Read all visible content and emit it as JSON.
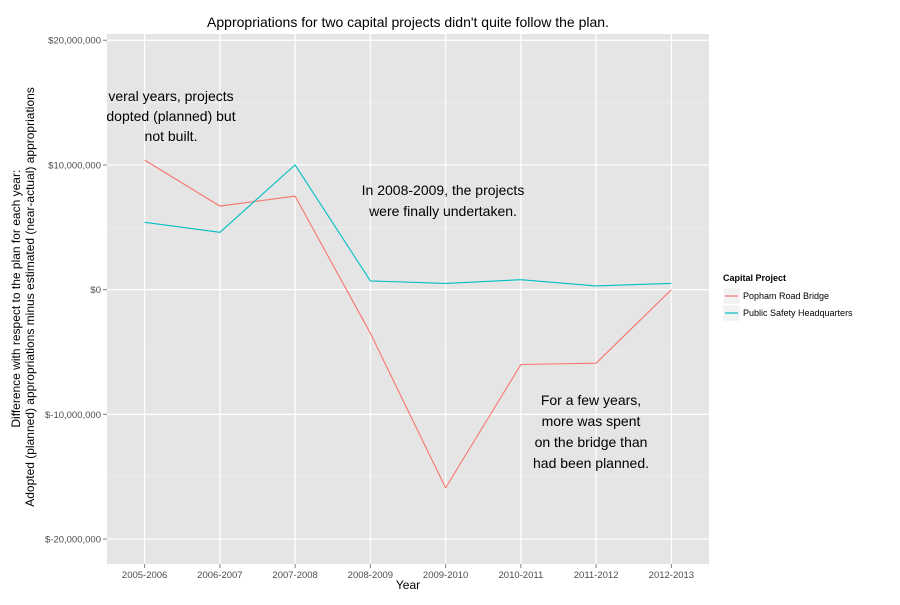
{
  "chart_data": {
    "type": "line",
    "title": "Appropriations for two capital projects didn't quite follow the plan.",
    "xlabel": "Year",
    "ylabel_lines": [
      "Difference with respect to the plan for each year:",
      "Adopted (planned) appropriations minus estimated (near-actual) appropriations"
    ],
    "categories": [
      "2005-2006",
      "2006-2007",
      "2007-2008",
      "2008-2009",
      "2009-2010",
      "2010-2011",
      "2011-2012",
      "2012-2013"
    ],
    "ylim": [
      -22000000,
      20500000
    ],
    "yticks": [
      -20000000,
      -10000000,
      0,
      10000000,
      20000000
    ],
    "ytick_labels": [
      "$-20,000,000",
      "$-10,000,000",
      "$0",
      "$10,000,000",
      "$20,000,000"
    ],
    "grid": true,
    "legend": {
      "title": "Capital Project",
      "placement": "right"
    },
    "series": [
      {
        "name": "Popham Road Bridge",
        "color": "#F8766D",
        "values": [
          10400000,
          6700000,
          7500000,
          -3500000,
          -15900000,
          -6000000,
          -5900000,
          0
        ]
      },
      {
        "name": "Public Safety Headquarters",
        "color": "#00BFC4",
        "values": [
          5400000,
          4600000,
          10000000,
          700000,
          500000,
          800000,
          300000,
          500000
        ]
      }
    ],
    "annotations": [
      {
        "id": "several-years",
        "lines": [
          "veral years, projects",
          "dopted (planned) but",
          "not built."
        ]
      },
      {
        "id": "undertaken",
        "lines": [
          "In 2008-2009, the projects",
          "were finally undertaken."
        ]
      },
      {
        "id": "bridge-overspend",
        "lines": [
          "For a few years,",
          "more was spent",
          "on the bridge than",
          "had been planned."
        ]
      }
    ],
    "colors": {
      "panel_background": "#E5E5E5",
      "grid_major": "#FFFFFF",
      "grid_minor": "#F2F2F2",
      "axis_text": "#4D4D4D"
    }
  }
}
